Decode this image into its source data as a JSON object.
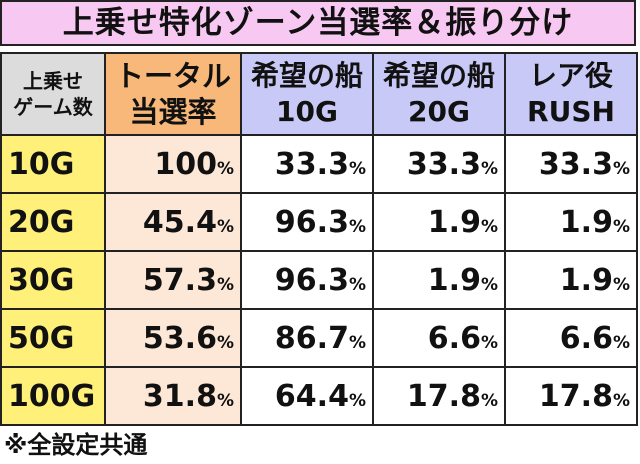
{
  "title": "上乗せ特化ゾーン当選率＆振り分け",
  "header": {
    "games_line1": "上乗せ",
    "games_line2": "ゲーム数",
    "total_line1": "トータル",
    "total_line2": "当選率",
    "col1_line1": "希望の船",
    "col1_line2": "10G",
    "col2_line1": "希望の船",
    "col2_line2": "20G",
    "col3_line1": "レア役",
    "col3_line2": "RUSH"
  },
  "percent_sign": "%",
  "rows": [
    {
      "games": "10G",
      "total": "100",
      "v1": "33.3",
      "v2": "33.3",
      "v3": "33.3"
    },
    {
      "games": "20G",
      "total": "45.4",
      "v1": "96.3",
      "v2": "1.9",
      "v3": "1.9"
    },
    {
      "games": "30G",
      "total": "57.3",
      "v1": "96.3",
      "v2": "1.9",
      "v3": "1.9"
    },
    {
      "games": "50G",
      "total": "53.6",
      "v1": "86.7",
      "v2": "6.6",
      "v3": "6.6"
    },
    {
      "games": "100G",
      "total": "31.8",
      "v1": "64.4",
      "v2": "17.8",
      "v3": "17.8"
    }
  ],
  "note": "※全設定共通",
  "colors": {
    "title_bg": "#f7c8f2",
    "label_header_bg": "#dcdcdc",
    "total_header_bg": "#f7b87a",
    "column_header_bg": "#c9c9f7",
    "games_cell_bg": "#fff07a",
    "total_cell_bg": "#fde8d8"
  }
}
